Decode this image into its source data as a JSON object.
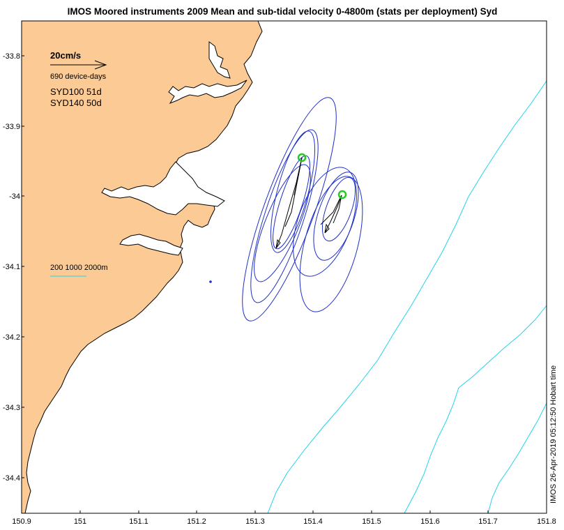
{
  "title": "IMOS Moored instruments 2009 Mean and sub-tidal velocity 0-4800m (stats per deployment) Syd",
  "scale_arrow": {
    "label": "20cm/s",
    "device_days": "690 device-days"
  },
  "deployments": [
    {
      "label": "SYD100 51d",
      "lon": 151.38,
      "lat": -33.944
    },
    {
      "label": "SYD140 50d",
      "lon": 151.45,
      "lat": -34.0
    }
  ],
  "isobath_legend": "200 1000 2000m",
  "timestamp": "IMOS 26-Apr-2019 05:12:50 Hobart time",
  "axes": {
    "xlim": [
      150.9,
      151.8
    ],
    "ylim": [
      -34.45,
      -33.75
    ],
    "xticks": [
      "150.9",
      "151",
      "151.1",
      "151.2",
      "151.3",
      "151.4",
      "151.5",
      "151.6",
      "151.7",
      "151.8"
    ],
    "yticks": [
      "-33.8",
      "-33.9",
      "-34",
      "-34.1",
      "-34.2",
      "-34.3",
      "-34.4"
    ]
  },
  "colors": {
    "land": "#FBCA95",
    "ellipse": "#1f2fc8",
    "isobath": "#22d4e8",
    "marker": "#22cc22",
    "vector": "#000000"
  }
}
